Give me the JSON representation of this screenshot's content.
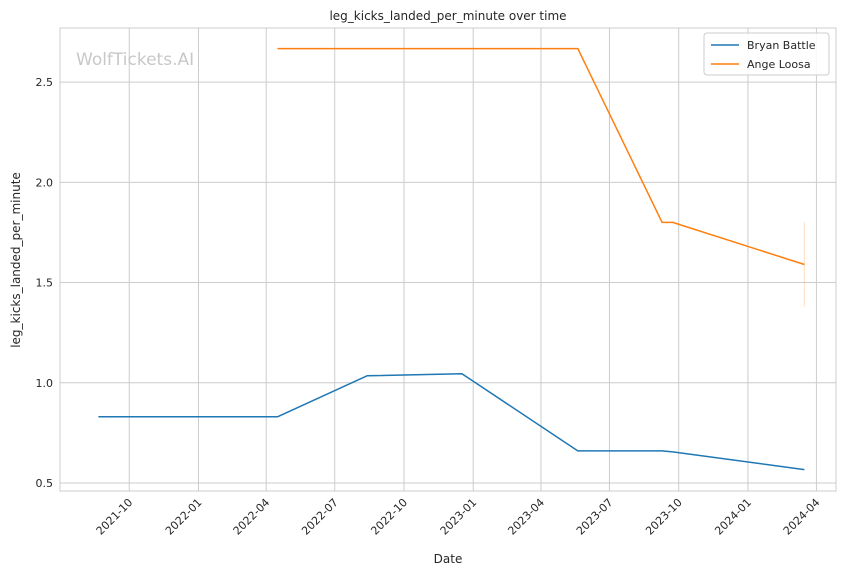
{
  "chart_data": {
    "type": "line",
    "title": "leg_kicks_landed_per_minute over time",
    "xlabel": "Date",
    "ylabel": "leg_kicks_landed_per_minute",
    "watermark": "WolfTickets.AI",
    "x_axis": {
      "kind": "date",
      "range": [
        "2021-07-01",
        "2024-04-27"
      ],
      "ticks": [
        "2021-10-01",
        "2022-01-01",
        "2022-04-01",
        "2022-07-01",
        "2022-10-01",
        "2023-01-01",
        "2023-04-01",
        "2023-07-01",
        "2023-10-01",
        "2024-01-01",
        "2024-04-01"
      ],
      "tick_labels": [
        "2021-10",
        "2022-01",
        "2022-04",
        "2022-07",
        "2022-10",
        "2023-01",
        "2023-04",
        "2023-07",
        "2023-10",
        "2024-01",
        "2024-04"
      ]
    },
    "y_axis": {
      "range": [
        0.46,
        2.77
      ],
      "ticks": [
        0.5,
        1.0,
        1.5,
        2.0,
        2.5
      ],
      "tick_labels": [
        "0.5",
        "1.0",
        "1.5",
        "2.0",
        "2.5"
      ]
    },
    "grid": true,
    "legend": "top-right",
    "series": [
      {
        "name": "Bryan Battle",
        "color": "#1f77b4",
        "points": [
          {
            "x": "2021-08-21",
            "y": 0.83
          },
          {
            "x": "2022-04-16",
            "y": 0.83
          },
          {
            "x": "2022-08-13",
            "y": 1.035
          },
          {
            "x": "2022-12-17",
            "y": 1.045
          },
          {
            "x": "2023-05-20",
            "y": 0.66
          },
          {
            "x": "2023-09-09",
            "y": 0.66
          },
          {
            "x": "2023-09-23",
            "y": 0.655
          },
          {
            "x": "2024-03-16",
            "y": 0.567
          }
        ]
      },
      {
        "name": "Ange Loosa",
        "color": "#ff7f0e",
        "points": [
          {
            "x": "2022-04-16",
            "y": 2.667
          },
          {
            "x": "2023-05-20",
            "y": 2.667
          },
          {
            "x": "2023-09-09",
            "y": 1.8
          },
          {
            "x": "2023-09-23",
            "y": 1.8
          },
          {
            "x": "2024-03-16",
            "y": 1.59
          }
        ],
        "error_bar": {
          "x": "2024-03-16",
          "low": 1.38,
          "high": 1.8
        }
      }
    ]
  }
}
